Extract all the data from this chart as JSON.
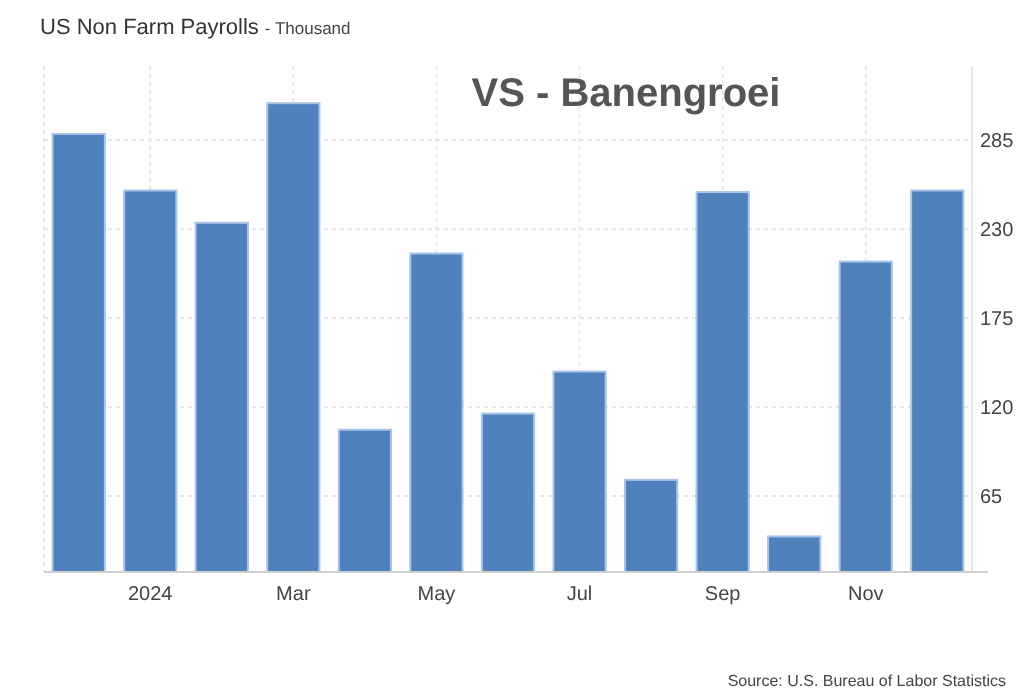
{
  "chart_data": {
    "type": "bar",
    "title": "US Non Farm Payrolls",
    "subtitle": "- Thousand",
    "categories": [
      null,
      "2024",
      null,
      "Mar",
      null,
      "May",
      null,
      "Jul",
      null,
      "Sep",
      null,
      "Nov",
      null
    ],
    "values": [
      289,
      254,
      234,
      308,
      106,
      215,
      116,
      142,
      75,
      253,
      40,
      210,
      254
    ],
    "color": "#4f81bd",
    "ylim": [
      18,
      331
    ],
    "yticks": [
      65,
      120,
      175,
      230,
      285
    ],
    "grid": true,
    "annotations": [
      "VS - Banengroei",
      "Source: U.S. Bureau of Labor Statistics"
    ]
  }
}
